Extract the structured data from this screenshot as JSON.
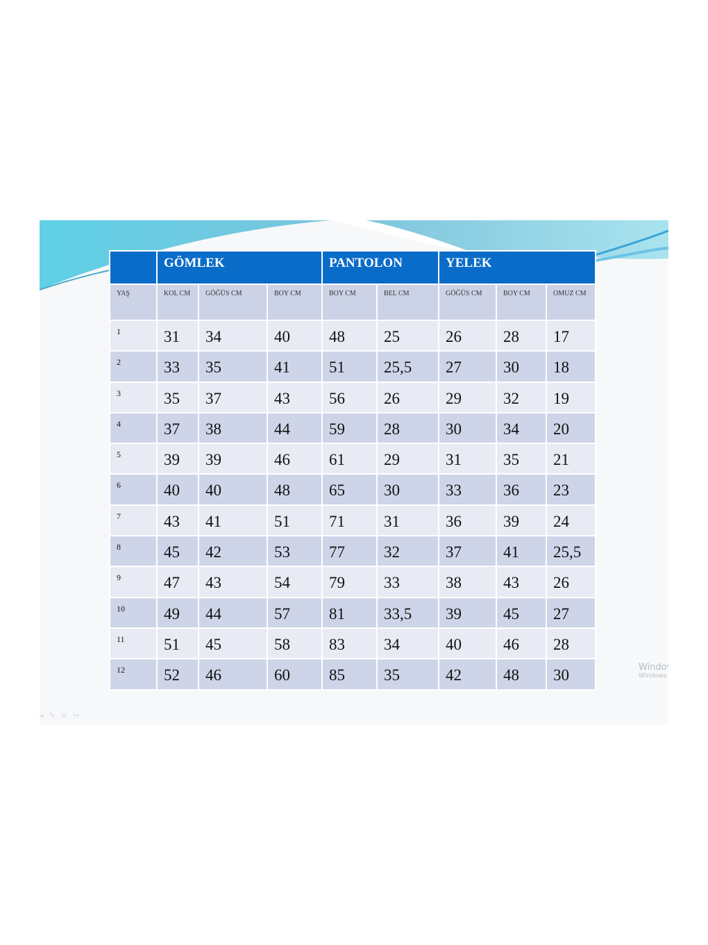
{
  "table": {
    "groups": [
      "",
      "GÖMLEK",
      "PANTOLON",
      "YELEK"
    ],
    "subheaders": [
      "YAŞ",
      "KOL CM",
      "GÖĞÜS CM",
      "BOY CM",
      "BOY CM",
      "BEL CM",
      "GÖĞÜS CM",
      "BOY CM",
      "OMUZ CM"
    ],
    "rows": [
      [
        "1",
        "31",
        "34",
        "40",
        "48",
        "25",
        "26",
        "28",
        "17"
      ],
      [
        "2",
        "33",
        "35",
        "41",
        "51",
        "25,5",
        "27",
        "30",
        "18"
      ],
      [
        "3",
        "35",
        "37",
        "43",
        "56",
        "26",
        "29",
        "32",
        "19"
      ],
      [
        "4",
        "37",
        "38",
        "44",
        "59",
        "28",
        "30",
        "34",
        "20"
      ],
      [
        "5",
        "39",
        "39",
        "46",
        "61",
        "29",
        "31",
        "35",
        "21"
      ],
      [
        "6",
        "40",
        "40",
        "48",
        "65",
        "30",
        "33",
        "36",
        "23"
      ],
      [
        "7",
        "43",
        "41",
        "51",
        "71",
        "31",
        "36",
        "39",
        "24"
      ],
      [
        "8",
        "45",
        "42",
        "53",
        "77",
        "32",
        "37",
        "41",
        "25,5"
      ],
      [
        "9",
        "47",
        "43",
        "54",
        "79",
        "33",
        "38",
        "43",
        "26"
      ],
      [
        "10",
        "49",
        "44",
        "57",
        "81",
        "33,5",
        "39",
        "45",
        "27"
      ],
      [
        "11",
        "51",
        "45",
        "58",
        "83",
        "34",
        "40",
        "46",
        "28"
      ],
      [
        "12",
        "52",
        "46",
        "60",
        "85",
        "35",
        "42",
        "48",
        "30"
      ]
    ]
  },
  "watermark": {
    "line1": "Windov",
    "line2": "Windows"
  },
  "colors": {
    "header": "#0a6cc9",
    "subheader": "#cdd3e6",
    "row_light": "#e8ebf4",
    "row_dark": "#cfd5e8"
  }
}
